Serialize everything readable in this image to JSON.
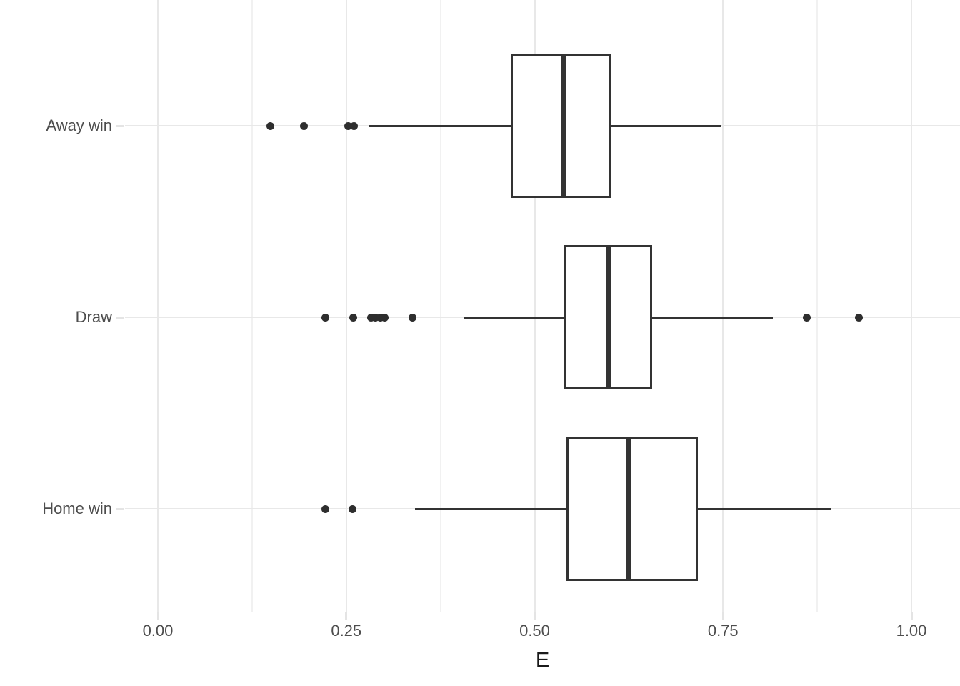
{
  "chart_data": {
    "type": "boxplot",
    "orientation": "horizontal",
    "title": "",
    "xlabel": "E",
    "ylabel": "",
    "xlim": [
      0,
      1
    ],
    "grid": true,
    "legend": false,
    "x_ticks": [
      0.0,
      0.25,
      0.5,
      0.75,
      1.0
    ],
    "x_tick_labels": [
      "0.00",
      "0.25",
      "0.50",
      "0.75",
      "1.00"
    ],
    "x_minor_ticks": [
      0.125,
      0.375,
      0.625,
      0.875
    ],
    "categories_top_to_bottom": [
      "Away win",
      "Draw",
      "Home win"
    ],
    "series": [
      {
        "category": "Away win",
        "whisker_low": 0.28,
        "q1": 0.468,
        "median": 0.538,
        "q3": 0.602,
        "whisker_high": 0.748,
        "outliers": [
          0.149,
          0.194,
          0.253,
          0.26
        ]
      },
      {
        "category": "Draw",
        "whisker_low": 0.407,
        "q1": 0.538,
        "median": 0.598,
        "q3": 0.656,
        "whisker_high": 0.816,
        "outliers": [
          0.222,
          0.259,
          0.283,
          0.289,
          0.295,
          0.301,
          0.338,
          0.861,
          0.93
        ]
      },
      {
        "category": "Home win",
        "whisker_low": 0.341,
        "q1": 0.542,
        "median": 0.625,
        "q3": 0.717,
        "whisker_high": 0.893,
        "outliers": [
          0.222,
          0.258
        ]
      }
    ]
  },
  "colors": {
    "box_stroke": "#333333",
    "outlier_fill": "#2e2e2e",
    "grid_major": "#e8e8e8",
    "grid_minor": "#f1f1f1",
    "tick_mark": "#e4e4e4",
    "axis_text": "#4d4d4d",
    "axis_title": "#1a1a1a",
    "background": "#ffffff"
  }
}
